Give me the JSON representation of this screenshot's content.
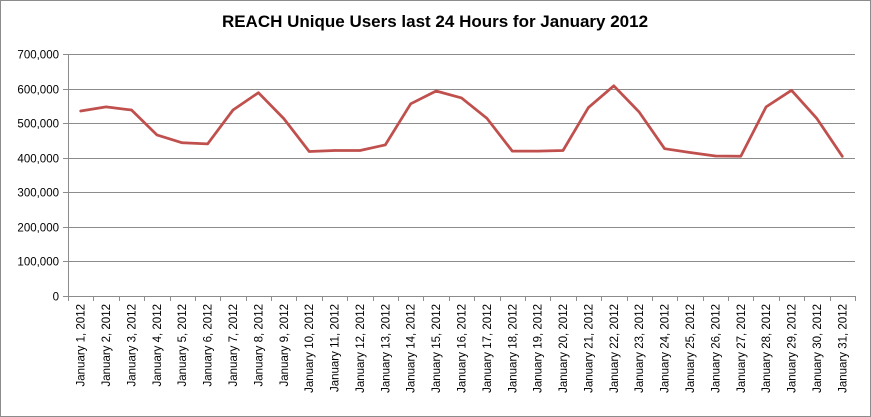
{
  "chart_data": {
    "type": "line",
    "title": "REACH Unique Users last 24 Hours for January 2012",
    "xlabel": "",
    "ylabel": "",
    "ylim": [
      0,
      700000
    ],
    "yticks": [
      "0",
      "100,000",
      "200,000",
      "300,000",
      "400,000",
      "500,000",
      "600,000",
      "700,000"
    ],
    "grid": true,
    "legend": "none",
    "line_color": "#c0504d",
    "categories": [
      "January 1, 2012",
      "January 2, 2012",
      "January 3, 2012",
      "January 4, 2012",
      "January 5, 2012",
      "January 6, 2012",
      "January 7, 2012",
      "January 8, 2012",
      "January 9, 2012",
      "January 10, 2012",
      "January 11, 2012",
      "January 12, 2012",
      "January 13, 2012",
      "January 14, 2012",
      "January 15, 2012",
      "January 16, 2012",
      "January 17, 2012",
      "January 18, 2012",
      "January 19, 2012",
      "January 20, 2012",
      "January 21, 2012",
      "January 22, 2012",
      "January 23, 2012",
      "January 24, 2012",
      "January 25, 2012",
      "January 26, 2012",
      "January 27, 2012",
      "January 28, 2012",
      "January 29, 2012",
      "January 30, 2012",
      "January 31, 2012"
    ],
    "series": [
      {
        "values": [
          535000,
          547000,
          538000,
          466000,
          443000,
          440000,
          538000,
          588000,
          513000,
          418000,
          421000,
          421000,
          437000,
          556000,
          593000,
          573000,
          514000,
          419000,
          419000,
          421000,
          545000,
          608000,
          532000,
          426000,
          415000,
          405000,
          404000,
          547000,
          595000,
          513000,
          404000
        ]
      }
    ]
  }
}
